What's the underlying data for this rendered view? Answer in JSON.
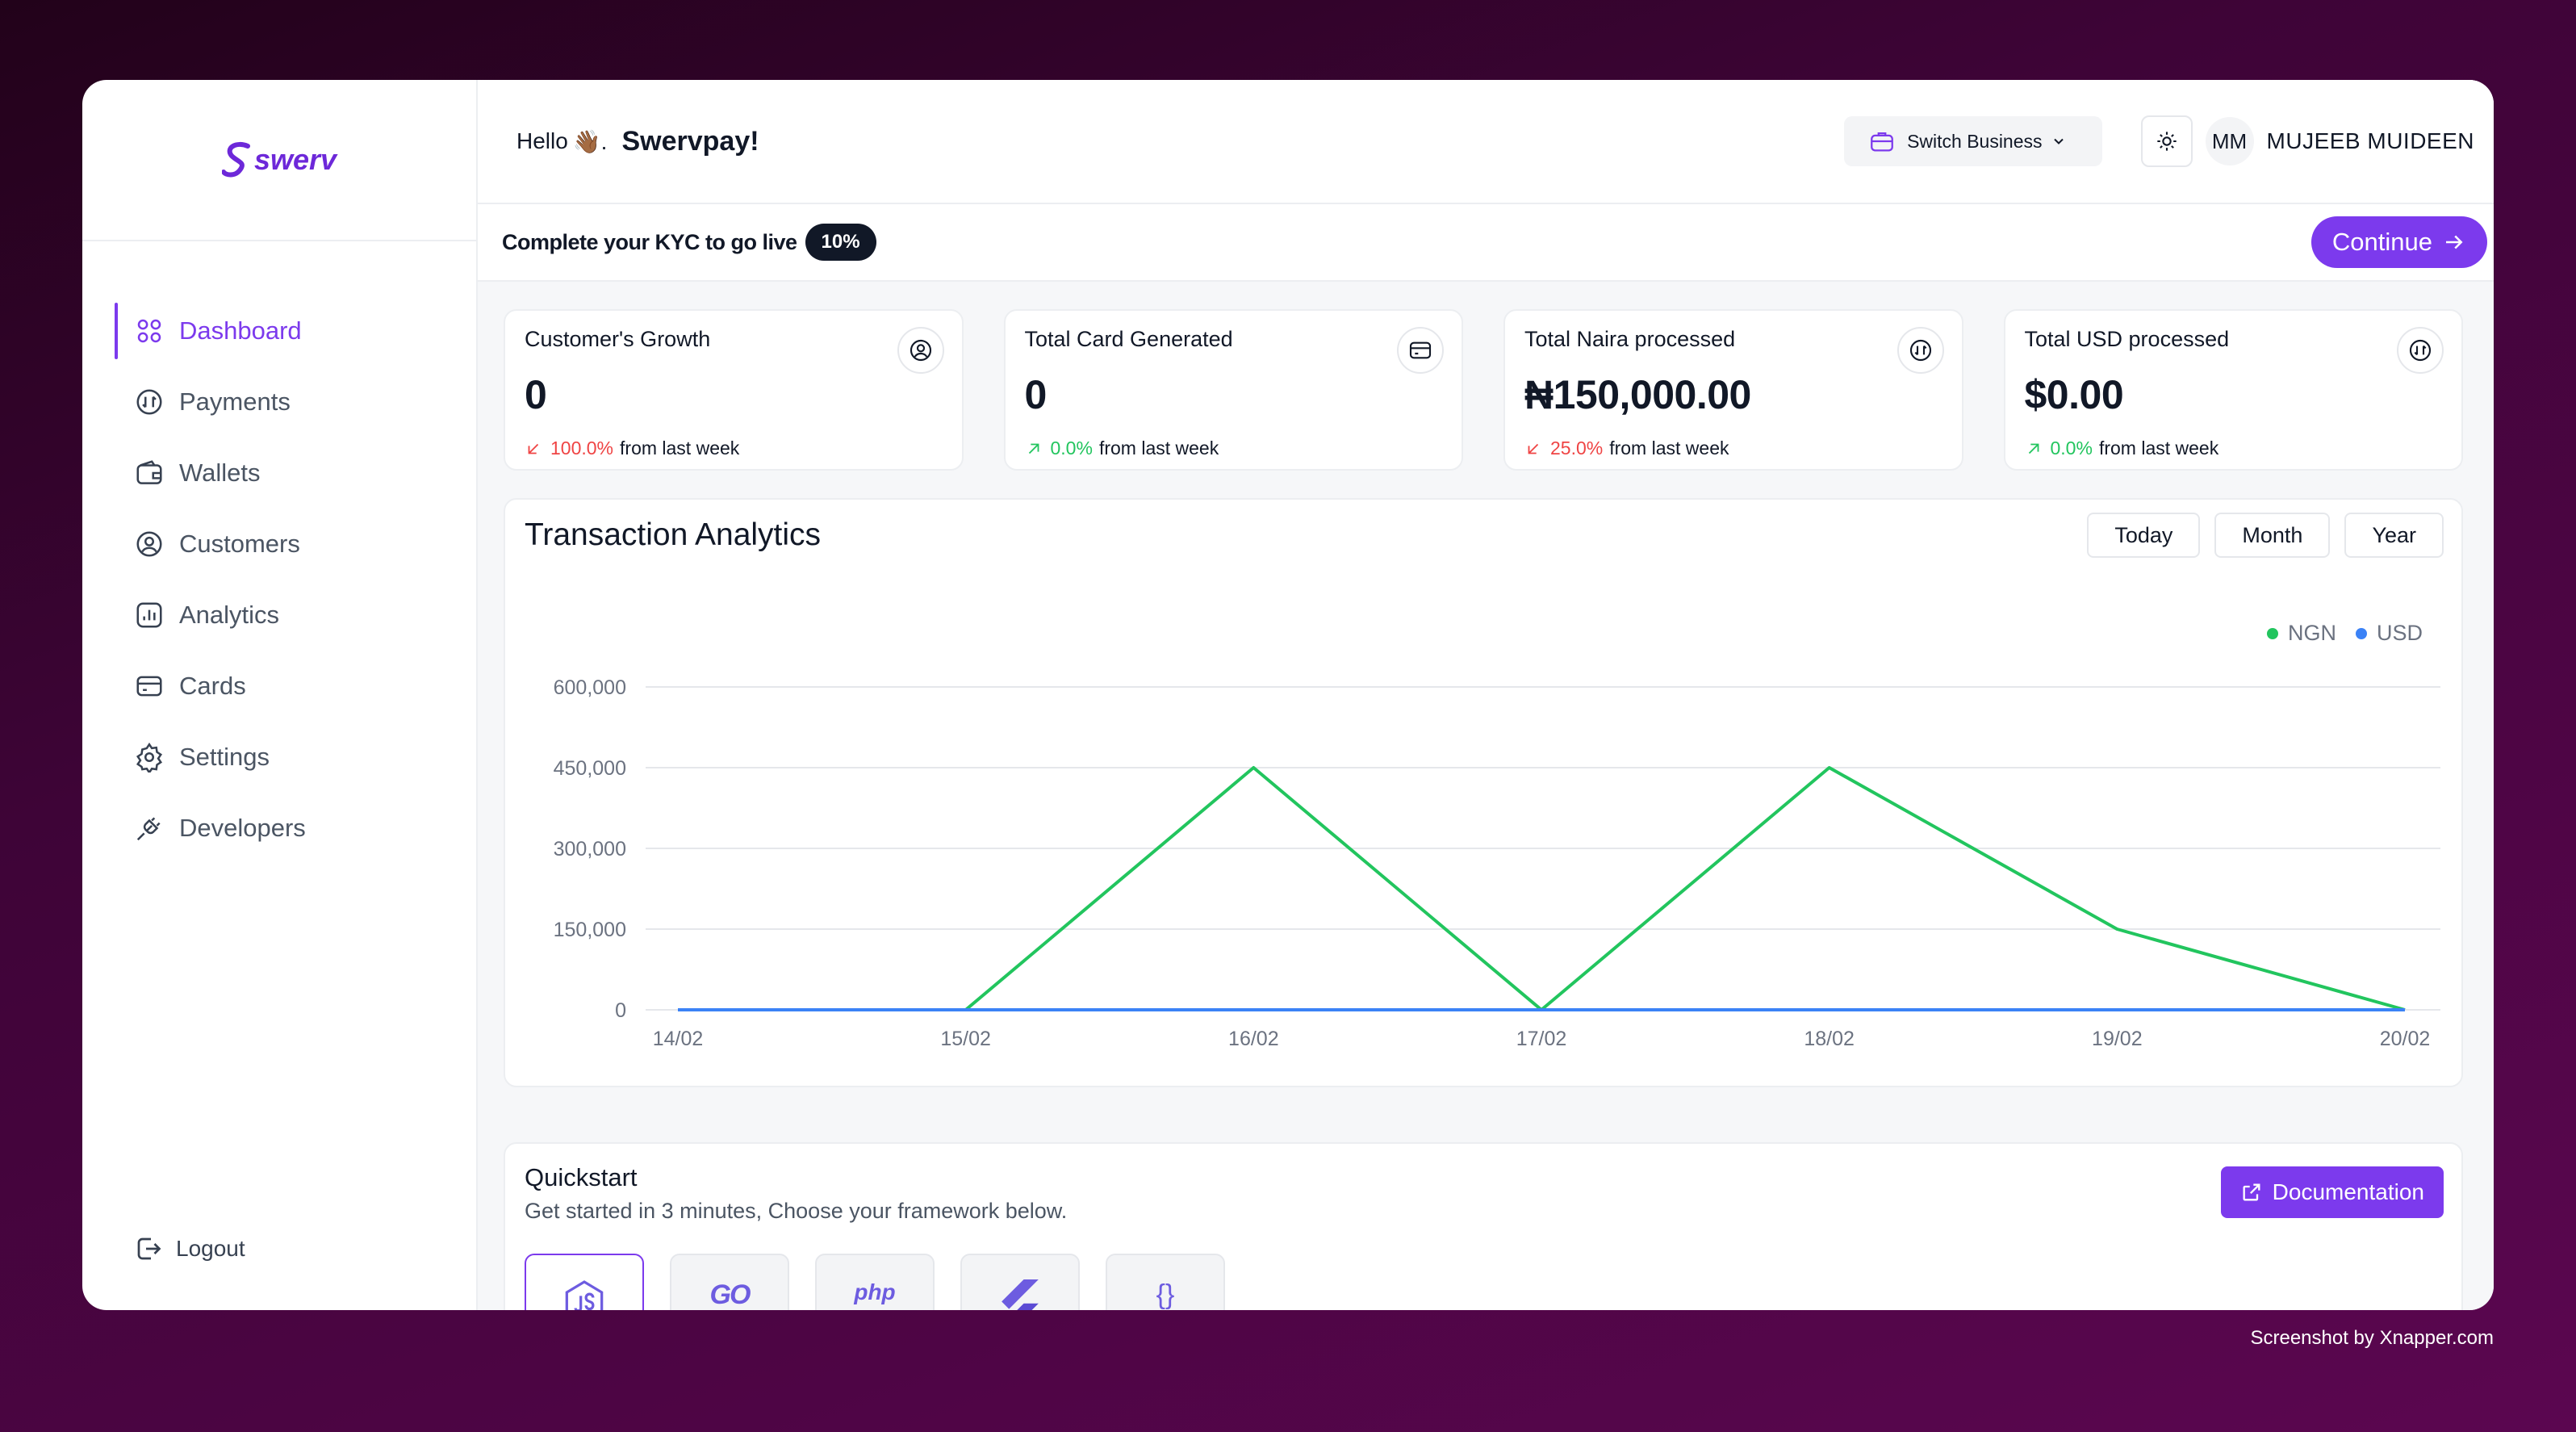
{
  "brand": {
    "name": "swerv",
    "accent": "#7c3aed"
  },
  "sidebar": {
    "items": [
      {
        "label": "Dashboard",
        "icon": "grid-icon",
        "active": true
      },
      {
        "label": "Payments",
        "icon": "payment-icon"
      },
      {
        "label": "Wallets",
        "icon": "wallet-icon"
      },
      {
        "label": "Customers",
        "icon": "user-circle-icon"
      },
      {
        "label": "Analytics",
        "icon": "analytics-icon"
      },
      {
        "label": "Cards",
        "icon": "card-icon"
      },
      {
        "label": "Settings",
        "icon": "gear-icon"
      },
      {
        "label": "Developers",
        "icon": "plug-icon"
      }
    ],
    "logout": "Logout"
  },
  "header": {
    "greeting": "Hello",
    "hand": "👋🏾.",
    "business": "Swervpay!",
    "switch_business": "Switch Business",
    "avatar_initials": "MM",
    "user_name": "MUJEEB MUIDEEN"
  },
  "kyc": {
    "text": "Complete your KYC to go live",
    "progress": "10%",
    "continue": "Continue"
  },
  "stats": [
    {
      "label": "Customer's Growth",
      "value": "0",
      "change": "100.0%",
      "direction": "down",
      "suffix": "from last week",
      "icon": "user-circle-icon"
    },
    {
      "label": "Total Card Generated",
      "value": "0",
      "change": "0.0%",
      "direction": "up",
      "suffix": "from last week",
      "icon": "card-icon"
    },
    {
      "label": "Total Naira processed",
      "value": "₦150,000.00",
      "change": "25.0%",
      "direction": "down",
      "suffix": "from last week",
      "icon": "payment-icon"
    },
    {
      "label": "Total USD processed",
      "value": "$0.00",
      "change": "0.0%",
      "direction": "up",
      "suffix": "from last week",
      "icon": "payment-icon"
    }
  ],
  "analytics": {
    "title": "Transaction Analytics",
    "ranges": [
      "Today",
      "Month",
      "Year"
    ]
  },
  "chart_data": {
    "type": "line",
    "x": [
      "14/02",
      "15/02",
      "16/02",
      "17/02",
      "18/02",
      "19/02",
      "20/02"
    ],
    "series": [
      {
        "name": "NGN",
        "color": "#22c55e",
        "values": [
          0,
          0,
          450000,
          0,
          450000,
          150000,
          0
        ]
      },
      {
        "name": "USD",
        "color": "#3b82f6",
        "values": [
          0,
          0,
          0,
          0,
          0,
          0,
          0
        ]
      }
    ],
    "yticks": [
      "600,000",
      "450,000",
      "300,000",
      "150,000",
      "0"
    ],
    "ylim": [
      0,
      600000
    ],
    "grid": true,
    "legend": "top-right"
  },
  "quickstart": {
    "title": "Quickstart",
    "subtitle": "Get started in 3 minutes, Choose your framework below.",
    "documentation": "Documentation",
    "frameworks": [
      {
        "name": "nodejs-icon",
        "label": "",
        "active": true
      },
      {
        "name": "go-icon",
        "label": "GO"
      },
      {
        "name": "php-icon",
        "label": "php"
      },
      {
        "name": "flutter-icon",
        "label": ""
      },
      {
        "name": "json-api-icon",
        "label": "{}"
      }
    ]
  },
  "watermark": "Screenshot by Xnapper.com"
}
